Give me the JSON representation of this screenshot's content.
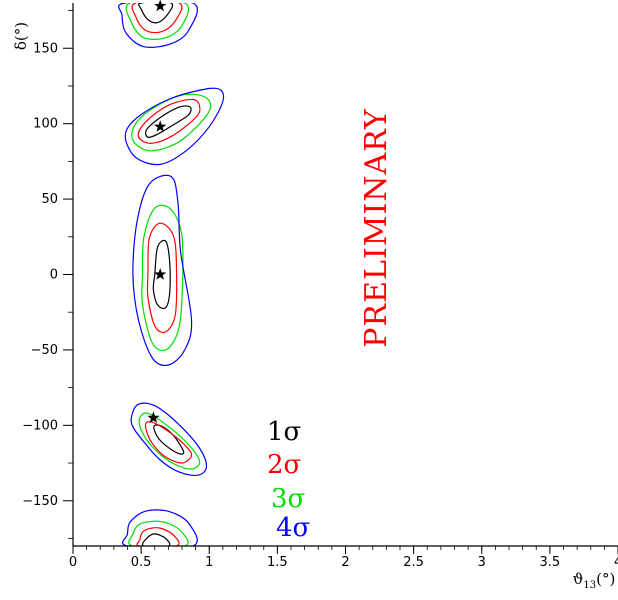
{
  "chart_data": {
    "type": "contour",
    "xlabel": "ϑ13(°)",
    "ylabel": "δ(°)",
    "xlim": [
      0,
      4
    ],
    "ylim": [
      -180,
      180
    ],
    "x_ticks": [
      "0",
      "0.5",
      "1",
      "1.5",
      "2",
      "2.5",
      "3",
      "3.5",
      "4"
    ],
    "y_ticks": [
      "150",
      "100",
      "50",
      "0",
      "−50",
      "−100",
      "−150"
    ],
    "watermark": "PRELIMINARY",
    "watermark_color": "#ff0000",
    "legend": [
      {
        "label": "1σ",
        "color": "#000000"
      },
      {
        "label": "2σ",
        "color": "#ff0000"
      },
      {
        "label": "3σ",
        "color": "#00dd00"
      },
      {
        "label": "4σ",
        "color": "#0000ff"
      }
    ],
    "best_fit_points": [
      {
        "x": 0.64,
        "y": 178
      },
      {
        "x": 0.64,
        "y": 98
      },
      {
        "x": 0.64,
        "y": 0
      },
      {
        "x": 0.59,
        "y": -95
      }
    ],
    "regions": [
      {
        "id": "top",
        "contours": [
          {
            "level": "1σ",
            "points": [
              [
                0.5,
                180
              ],
              [
                0.72,
                180
              ],
              [
                0.69,
                172
              ],
              [
                0.62,
                167
              ],
              [
                0.55,
                169
              ],
              [
                0.5,
                176
              ]
            ]
          },
          {
            "level": "2σ",
            "points": [
              [
                0.46,
                180
              ],
              [
                0.78,
                180
              ],
              [
                0.75,
                168
              ],
              [
                0.65,
                161
              ],
              [
                0.53,
                162
              ],
              [
                0.46,
                171
              ]
            ]
          },
          {
            "level": "3σ",
            "points": [
              [
                0.42,
                180
              ],
              [
                0.82,
                180
              ],
              [
                0.8,
                165
              ],
              [
                0.68,
                157
              ],
              [
                0.52,
                157
              ],
              [
                0.43,
                167
              ]
            ]
          },
          {
            "level": "4σ",
            "points": [
              [
                0.38,
                180
              ],
              [
                0.88,
                180
              ],
              [
                0.85,
                162
              ],
              [
                0.72,
                153
              ],
              [
                0.52,
                151
              ],
              [
                0.39,
                160
              ],
              [
                0.36,
                172
              ]
            ]
          }
        ]
      },
      {
        "id": "upper",
        "contours": [
          {
            "level": "1σ",
            "points": [
              [
                0.55,
                91
              ],
              [
                0.62,
                93
              ],
              [
                0.75,
                100
              ],
              [
                0.85,
                106
              ],
              [
                0.86,
                111
              ],
              [
                0.78,
                111
              ],
              [
                0.64,
                104
              ],
              [
                0.54,
                96
              ]
            ]
          },
          {
            "level": "2σ",
            "points": [
              [
                0.49,
                90
              ],
              [
                0.58,
                87
              ],
              [
                0.73,
                92
              ],
              [
                0.9,
                104
              ],
              [
                0.93,
                111
              ],
              [
                0.88,
                116
              ],
              [
                0.72,
                113
              ],
              [
                0.58,
                105
              ],
              [
                0.49,
                96
              ]
            ]
          },
          {
            "level": "3σ",
            "points": [
              [
                0.44,
                89
              ],
              [
                0.56,
                82
              ],
              [
                0.76,
                87
              ],
              [
                0.93,
                100
              ],
              [
                1.01,
                111
              ],
              [
                0.96,
                118
              ],
              [
                0.8,
                119
              ],
              [
                0.6,
                111
              ],
              [
                0.46,
                100
              ]
            ]
          },
          {
            "level": "4σ",
            "points": [
              [
                0.39,
                88
              ],
              [
                0.47,
                77
              ],
              [
                0.64,
                73
              ],
              [
                0.83,
                82
              ],
              [
                1.0,
                98
              ],
              [
                1.1,
                115
              ],
              [
                1.07,
                123
              ],
              [
                0.92,
                122
              ],
              [
                0.7,
                116
              ],
              [
                0.5,
                106
              ],
              [
                0.4,
                97
              ]
            ]
          }
        ]
      },
      {
        "id": "middle",
        "contours": [
          {
            "level": "1σ",
            "points": [
              [
                0.6,
                0
              ],
              [
                0.62,
                18
              ],
              [
                0.68,
                22
              ],
              [
                0.71,
                8
              ],
              [
                0.71,
                -12
              ],
              [
                0.68,
                -22
              ],
              [
                0.62,
                -20
              ],
              [
                0.59,
                -10
              ]
            ]
          },
          {
            "level": "2σ",
            "points": [
              [
                0.55,
                0
              ],
              [
                0.56,
                24
              ],
              [
                0.64,
                34
              ],
              [
                0.74,
                25
              ],
              [
                0.76,
                0
              ],
              [
                0.75,
                -27
              ],
              [
                0.68,
                -38
              ],
              [
                0.6,
                -34
              ],
              [
                0.55,
                -15
              ]
            ]
          },
          {
            "level": "3σ",
            "points": [
              [
                0.51,
                0
              ],
              [
                0.52,
                25
              ],
              [
                0.6,
                44
              ],
              [
                0.72,
                43
              ],
              [
                0.8,
                25
              ],
              [
                0.8,
                -15
              ],
              [
                0.77,
                -38
              ],
              [
                0.68,
                -50
              ],
              [
                0.58,
                -45
              ],
              [
                0.51,
                -20
              ]
            ]
          },
          {
            "level": "4σ",
            "points": [
              [
                0.44,
                0
              ],
              [
                0.47,
                35
              ],
              [
                0.56,
                60
              ],
              [
                0.72,
                65
              ],
              [
                0.77,
                48
              ],
              [
                0.79,
                15
              ],
              [
                0.87,
                -30
              ],
              [
                0.82,
                -50
              ],
              [
                0.7,
                -60
              ],
              [
                0.58,
                -55
              ],
              [
                0.48,
                -30
              ]
            ]
          }
        ]
      },
      {
        "id": "lower",
        "contours": [
          {
            "level": "1σ",
            "points": [
              [
                0.6,
                -100
              ],
              [
                0.66,
                -101
              ],
              [
                0.74,
                -107
              ],
              [
                0.81,
                -117
              ],
              [
                0.79,
                -119
              ],
              [
                0.72,
                -116
              ],
              [
                0.64,
                -110
              ],
              [
                0.6,
                -104
              ]
            ]
          },
          {
            "level": "2σ",
            "points": [
              [
                0.54,
                -98
              ],
              [
                0.61,
                -99
              ],
              [
                0.73,
                -106
              ],
              [
                0.83,
                -114
              ],
              [
                0.87,
                -120
              ],
              [
                0.8,
                -125
              ],
              [
                0.68,
                -121
              ],
              [
                0.59,
                -113
              ],
              [
                0.54,
                -104
              ]
            ]
          },
          {
            "level": "3σ",
            "points": [
              [
                0.49,
                -95
              ],
              [
                0.55,
                -92
              ],
              [
                0.69,
                -100
              ],
              [
                0.84,
                -112
              ],
              [
                0.93,
                -124
              ],
              [
                0.86,
                -129
              ],
              [
                0.71,
                -124
              ],
              [
                0.58,
                -114
              ],
              [
                0.5,
                -103
              ]
            ]
          },
          {
            "level": "4σ",
            "points": [
              [
                0.43,
                -94
              ],
              [
                0.48,
                -86
              ],
              [
                0.6,
                -87
              ],
              [
                0.76,
                -98
              ],
              [
                0.92,
                -114
              ],
              [
                0.98,
                -127
              ],
              [
                0.92,
                -133
              ],
              [
                0.78,
                -131
              ],
              [
                0.64,
                -123
              ],
              [
                0.52,
                -111
              ],
              [
                0.44,
                -101
              ]
            ]
          }
        ]
      },
      {
        "id": "bottom",
        "contours": [
          {
            "level": "1σ",
            "points": [
              [
                0.52,
                -180
              ],
              [
                0.7,
                -180
              ],
              [
                0.68,
                -175
              ],
              [
                0.6,
                -172
              ],
              [
                0.54,
                -175
              ]
            ]
          },
          {
            "level": "2σ",
            "points": [
              [
                0.49,
                -180
              ],
              [
                0.76,
                -180
              ],
              [
                0.74,
                -173
              ],
              [
                0.63,
                -168
              ],
              [
                0.52,
                -170
              ],
              [
                0.49,
                -176
              ]
            ]
          },
          {
            "level": "3σ",
            "points": [
              [
                0.44,
                -180
              ],
              [
                0.82,
                -180
              ],
              [
                0.79,
                -170
              ],
              [
                0.66,
                -164
              ],
              [
                0.5,
                -165
              ],
              [
                0.44,
                -172
              ]
            ]
          },
          {
            "level": "4σ",
            "points": [
              [
                0.4,
                -180
              ],
              [
                0.88,
                -180
              ],
              [
                0.85,
                -165
              ],
              [
                0.7,
                -157
              ],
              [
                0.53,
                -157
              ],
              [
                0.42,
                -164
              ],
              [
                0.4,
                -172
              ]
            ]
          }
        ]
      }
    ]
  }
}
